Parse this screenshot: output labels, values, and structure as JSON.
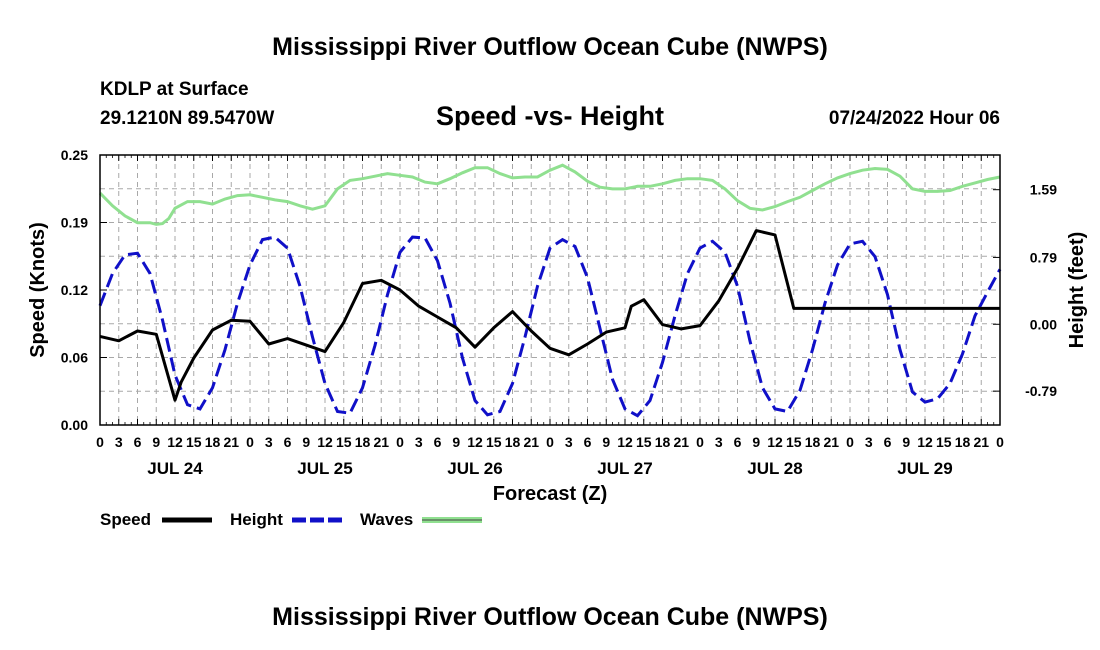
{
  "header": {
    "title": "Mississippi River Outflow Ocean Cube (NWPS)",
    "station": "KDLP at Surface",
    "coords": "29.1210N  89.5470W",
    "subtitle": "Speed -vs- Height",
    "datetime": "07/24/2022 Hour 06",
    "footer_title": "Mississippi River Outflow Ocean Cube (NWPS)"
  },
  "colors": {
    "speed": "#000000",
    "height": "#1010c8",
    "waves": "#90e090",
    "grid": "#a8a8a8"
  },
  "chart_data": {
    "type": "line",
    "title": "Speed -vs- Height",
    "xlabel": "Forecast (Z)",
    "ylabel": "Speed (Knots)",
    "y2label": "Height (feet)",
    "grid": true,
    "legend_position": "bottom-left",
    "xlim": [
      0,
      144
    ],
    "ylim": [
      0,
      0.25
    ],
    "y2lim": [
      -1.19,
      2.0
    ],
    "x_ticks": [
      0,
      3,
      6,
      9,
      12,
      15,
      18,
      21,
      24,
      27,
      30,
      33,
      36,
      39,
      42,
      45,
      48,
      51,
      54,
      57,
      60,
      63,
      66,
      69,
      72,
      75,
      78,
      81,
      84,
      87,
      90,
      93,
      96,
      99,
      102,
      105,
      108,
      111,
      114,
      117,
      120,
      123,
      126,
      129,
      132,
      135,
      138,
      141,
      144
    ],
    "x_tick_labels": [
      "0",
      "3",
      "6",
      "9",
      "12",
      "15",
      "18",
      "21",
      "0",
      "3",
      "6",
      "9",
      "12",
      "15",
      "18",
      "21",
      "0",
      "3",
      "6",
      "9",
      "12",
      "15",
      "18",
      "21",
      "0",
      "3",
      "6",
      "9",
      "12",
      "15",
      "18",
      "21",
      "0",
      "3",
      "6",
      "9",
      "12",
      "15",
      "18",
      "21",
      "0",
      "3",
      "6",
      "9",
      "12",
      "15",
      "18",
      "21",
      "0"
    ],
    "day_labels": [
      {
        "x": 12,
        "label": "JUL 24"
      },
      {
        "x": 36,
        "label": "JUL 25"
      },
      {
        "x": 60,
        "label": "JUL 26"
      },
      {
        "x": 84,
        "label": "JUL 27"
      },
      {
        "x": 108,
        "label": "JUL 28"
      },
      {
        "x": 132,
        "label": "JUL 29"
      }
    ],
    "y_ticks": [
      0,
      0.0625,
      0.125,
      0.1875,
      0.25
    ],
    "y_tick_labels": [
      "0.00",
      "0.06",
      "0.12",
      "0.19",
      "0.25"
    ],
    "y2_ticks": [
      -0.79,
      0,
      0.79,
      1.59
    ],
    "y2_tick_labels": [
      "-0.79",
      "0.00",
      "0.79",
      "1.59"
    ],
    "legend": [
      "Speed",
      "Height",
      "Waves"
    ],
    "series": [
      {
        "name": "Speed",
        "axis": "left",
        "style": "solid",
        "x": [
          0,
          3,
          6,
          9,
          12,
          13,
          15,
          18,
          21,
          24,
          27,
          30,
          33,
          36,
          39,
          42,
          45,
          48,
          51,
          54,
          57,
          60,
          63,
          66,
          69,
          72,
          75,
          78,
          81,
          84,
          85,
          87,
          90,
          93,
          96,
          99,
          102,
          105,
          108,
          111,
          112,
          114,
          115,
          117,
          120,
          123,
          126,
          129,
          132,
          135,
          138,
          141,
          144
        ],
        "y": [
          0.082,
          0.078,
          0.087,
          0.084,
          0.023,
          0.04,
          0.062,
          0.088,
          0.097,
          0.096,
          0.075,
          0.08,
          0.074,
          0.068,
          0.095,
          0.131,
          0.134,
          0.125,
          0.11,
          0.1,
          0.09,
          0.072,
          0.09,
          0.105,
          0.087,
          0.071,
          0.065,
          0.075,
          0.086,
          0.09,
          0.11,
          0.116,
          0.093,
          0.089,
          0.092,
          0.115,
          0.145,
          0.18,
          0.176,
          0.108,
          0.108,
          0.108,
          0.108,
          0.108,
          0.108,
          0.108,
          0.108,
          0.108,
          0.108,
          0.108,
          0.108,
          0.108,
          0.108
        ]
      },
      {
        "name": "Height",
        "axis": "right",
        "style": "dashed",
        "x": [
          0,
          2,
          4,
          6,
          8,
          10,
          12,
          14,
          16,
          18,
          20,
          22,
          24,
          26,
          28,
          30,
          32,
          34,
          36,
          38,
          40,
          42,
          44,
          46,
          48,
          50,
          52,
          54,
          56,
          58,
          60,
          62,
          64,
          66,
          68,
          70,
          72,
          74,
          76,
          78,
          80,
          82,
          84,
          86,
          88,
          90,
          92,
          94,
          96,
          98,
          100,
          102,
          104,
          106,
          108,
          110,
          112,
          114,
          116,
          118,
          120,
          122,
          124,
          126,
          128,
          130,
          132,
          134,
          136,
          138,
          140,
          142,
          144
        ],
        "y": [
          0.22,
          0.6,
          0.82,
          0.84,
          0.6,
          0.05,
          -0.6,
          -0.95,
          -1.0,
          -0.75,
          -0.3,
          0.25,
          0.7,
          1.0,
          1.03,
          0.9,
          0.45,
          -0.15,
          -0.7,
          -1.03,
          -1.05,
          -0.75,
          -0.25,
          0.35,
          0.85,
          1.03,
          1.02,
          0.75,
          0.25,
          -0.4,
          -0.9,
          -1.07,
          -1.03,
          -0.7,
          -0.15,
          0.45,
          0.9,
          1.0,
          0.92,
          0.55,
          -0.05,
          -0.65,
          -1.0,
          -1.08,
          -0.9,
          -0.45,
          0.1,
          0.6,
          0.9,
          0.98,
          0.85,
          0.45,
          -0.2,
          -0.75,
          -1.0,
          -1.03,
          -0.78,
          -0.3,
          0.25,
          0.7,
          0.95,
          0.98,
          0.8,
          0.35,
          -0.3,
          -0.8,
          -0.92,
          -0.88,
          -0.7,
          -0.35,
          0.1,
          0.38,
          0.65
        ]
      },
      {
        "name": "Waves",
        "axis": "right",
        "style": "solid",
        "x": [
          0,
          2,
          4,
          6,
          8,
          9,
          10,
          11,
          12,
          14,
          16,
          18,
          20,
          22,
          24,
          26,
          28,
          30,
          32,
          34,
          36,
          38,
          40,
          42,
          44,
          46,
          48,
          50,
          52,
          54,
          56,
          58,
          60,
          62,
          64,
          66,
          68,
          70,
          72,
          74,
          76,
          78,
          80,
          82,
          84,
          86,
          88,
          90,
          92,
          94,
          96,
          98,
          100,
          102,
          104,
          106,
          108,
          110,
          112,
          114,
          116,
          118,
          120,
          122,
          124,
          126,
          128,
          130,
          132,
          134,
          136,
          138,
          140,
          142,
          144
        ],
        "y": [
          1.55,
          1.4,
          1.28,
          1.2,
          1.2,
          1.18,
          1.19,
          1.25,
          1.37,
          1.45,
          1.45,
          1.42,
          1.48,
          1.52,
          1.53,
          1.5,
          1.47,
          1.45,
          1.4,
          1.36,
          1.4,
          1.6,
          1.7,
          1.72,
          1.75,
          1.78,
          1.76,
          1.74,
          1.68,
          1.66,
          1.72,
          1.79,
          1.85,
          1.85,
          1.78,
          1.73,
          1.74,
          1.74,
          1.82,
          1.88,
          1.8,
          1.69,
          1.62,
          1.6,
          1.6,
          1.63,
          1.63,
          1.66,
          1.7,
          1.72,
          1.72,
          1.7,
          1.6,
          1.46,
          1.37,
          1.35,
          1.39,
          1.45,
          1.5,
          1.58,
          1.66,
          1.73,
          1.78,
          1.82,
          1.84,
          1.83,
          1.75,
          1.6,
          1.57,
          1.57,
          1.58,
          1.63,
          1.67,
          1.71,
          1.74
        ]
      }
    ]
  }
}
